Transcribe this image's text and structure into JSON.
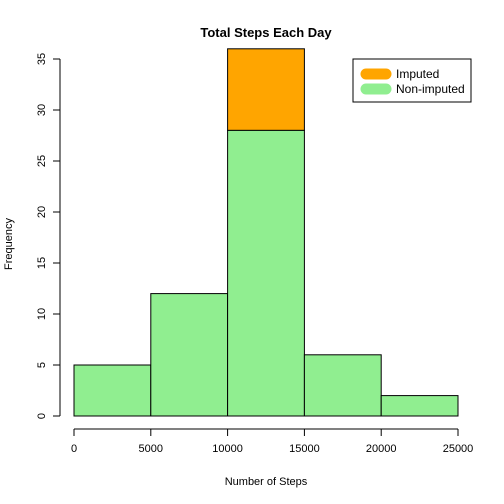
{
  "chart_data": {
    "type": "bar",
    "title": "Total Steps Each Day",
    "xlabel": "Number of Steps",
    "ylabel": "Frequency",
    "bins": [
      {
        "from": 0,
        "to": 5000
      },
      {
        "from": 5000,
        "to": 10000
      },
      {
        "from": 10000,
        "to": 15000
      },
      {
        "from": 15000,
        "to": 20000
      },
      {
        "from": 20000,
        "to": 25000
      }
    ],
    "series": [
      {
        "name": "Non-imputed",
        "color": "#90EE90",
        "values": [
          5,
          12,
          28,
          6,
          2
        ]
      },
      {
        "name": "Imputed",
        "color": "#FFA500",
        "values": [
          5,
          12,
          36,
          6,
          2
        ]
      }
    ],
    "xlim": [
      0,
      25000
    ],
    "ylim": [
      0,
      35
    ],
    "xticks": [
      0,
      5000,
      10000,
      15000,
      20000,
      25000
    ],
    "yticks": [
      0,
      5,
      10,
      15,
      20,
      25,
      30,
      35
    ],
    "grid": false,
    "legend": {
      "position": "top-right",
      "entries": [
        {
          "label": "Imputed",
          "color": "#FFA500"
        },
        {
          "label": "Non-imputed",
          "color": "#90EE90"
        }
      ]
    }
  }
}
